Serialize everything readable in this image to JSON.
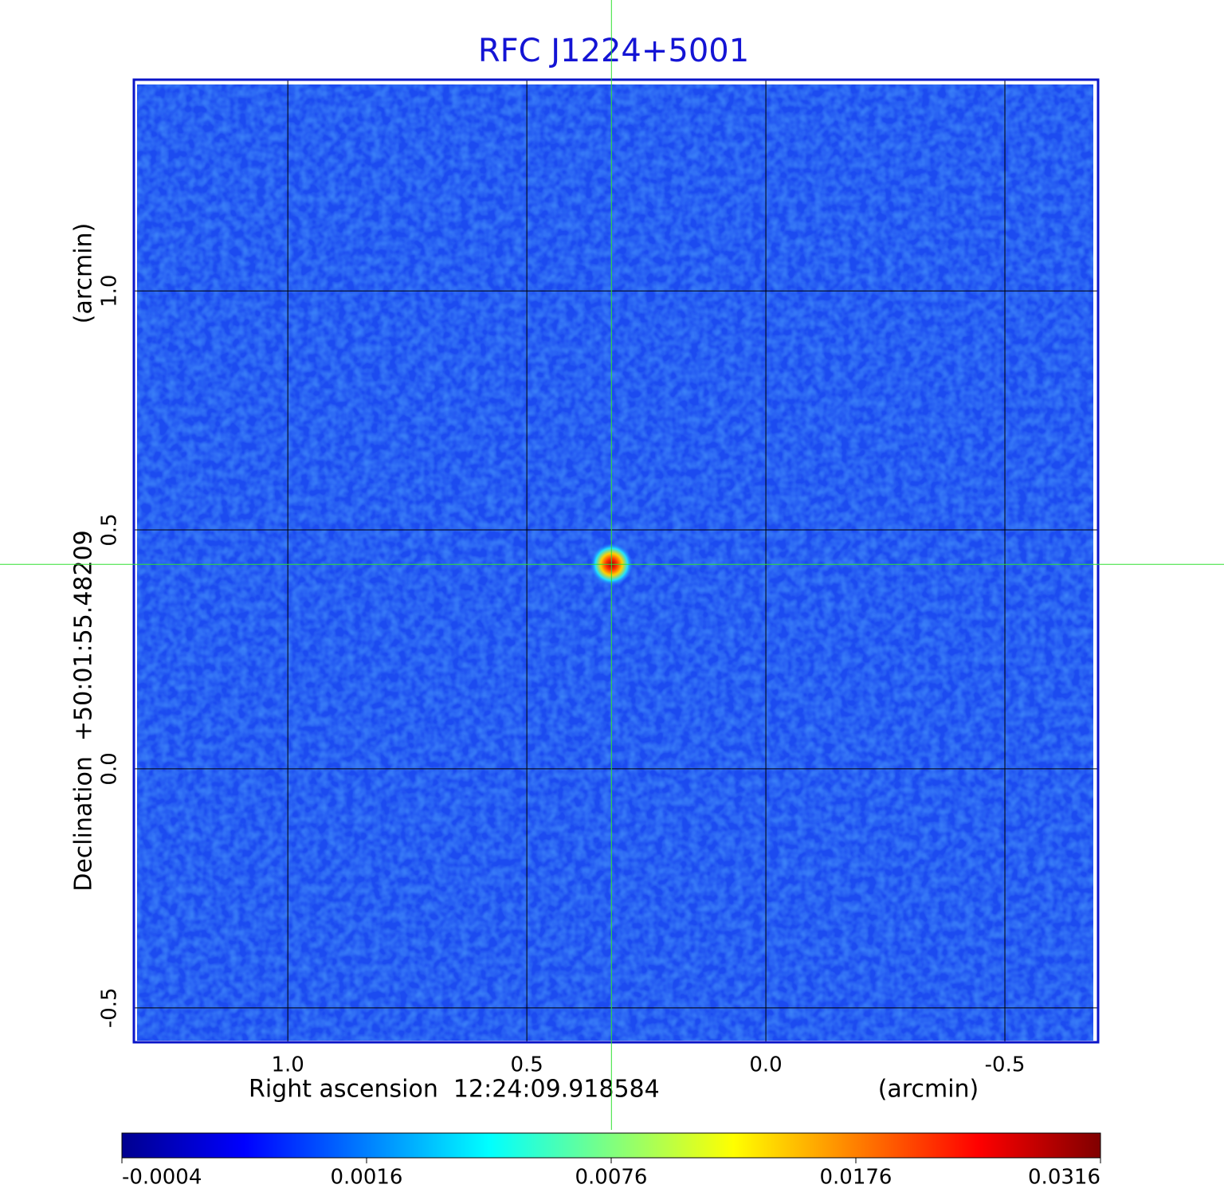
{
  "chart_data": {
    "type": "image",
    "title": "RFC J1224+5001",
    "xlabel": "Right ascension  12:24:09.918584",
    "xunit": "(arcmin)",
    "ylabel": "Declination  +50:01:55.48209",
    "yunit": "(arcmin)",
    "xlim": [
      1.322,
      -0.695
    ],
    "ylim": [
      -0.572,
      1.442
    ],
    "xticks": [
      {
        "value": 1,
        "label": "1.0"
      },
      0.5,
      {
        "value": 0,
        "label": "0.0"
      },
      -0.5
    ],
    "yticks": [
      -0.5,
      {
        "value": 0,
        "label": "0.0"
      },
      0.5,
      {
        "value": 1,
        "label": "1.0"
      }
    ],
    "grid": true,
    "source": {
      "x": 0.323,
      "y": 0.428,
      "peak": 0.0316
    },
    "colorbar": {
      "colormap": "jet",
      "scale": "sqrt",
      "lim": [
        -0.0004,
        0.0316
      ],
      "ticks": [
        -0.0004,
        0.0016,
        0.0076,
        0.0176,
        0.0316
      ]
    }
  }
}
